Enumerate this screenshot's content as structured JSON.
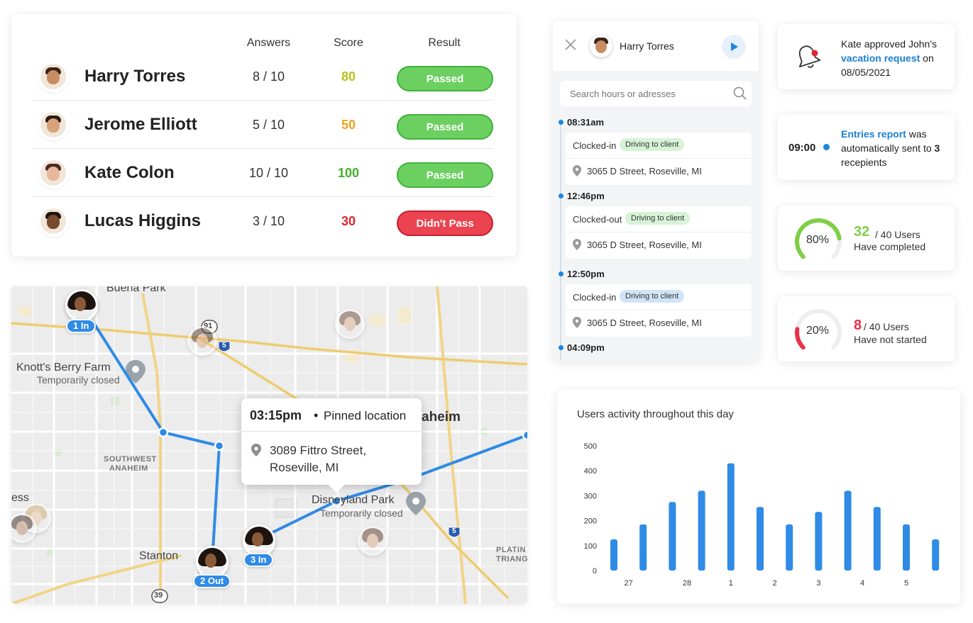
{
  "results": {
    "headers": {
      "answers": "Answers",
      "score": "Score",
      "result": "Result"
    },
    "rows": [
      {
        "name": "Harry Torres",
        "answers": "8 / 10",
        "score": "80",
        "score_color": "#b8c21c",
        "result": "Passed",
        "status": "pass",
        "skin": "#c98d63",
        "hair": "#3a2417"
      },
      {
        "name": "Jerome Elliott",
        "answers": "5 / 10",
        "score": "50",
        "score_color": "#f0a11a",
        "result": "Passed",
        "status": "pass",
        "skin": "#d8a27a",
        "hair": "#2a1b12"
      },
      {
        "name": "Kate Colon",
        "answers": "10 / 10",
        "score": "100",
        "score_color": "#43b02a",
        "result": "Passed",
        "status": "pass",
        "skin": "#e9b79c",
        "hair": "#4a2a20"
      },
      {
        "name": "Lucas Higgins",
        "answers": "3 / 10",
        "score": "30",
        "score_color": "#d9242b",
        "result": "Didn't Pass",
        "status": "fail",
        "skin": "#7a4a2c",
        "hair": "#1b1410"
      }
    ]
  },
  "map": {
    "labels": {
      "buena_park": "Buena Park",
      "knotts": "Knott's Berry Farm",
      "knotts_closed": "Temporarily closed",
      "anaheim": "aheim",
      "sw_anaheim_1": "SOUTHWEST",
      "sw_anaheim_2": "ANAHEIM",
      "disneyland": "Disneyland Park",
      "disney_closed": "Temporarily closed",
      "stanton": "Stanton",
      "ess": "ess",
      "platin_1": "PLATIN",
      "platin_2": "TRIANG",
      "route_91": "91",
      "route_5a": "5",
      "route_5b": "5",
      "route_39": "39"
    },
    "markers": [
      {
        "tag": "1 In"
      },
      {
        "tag": "2 Out"
      },
      {
        "tag": "3 In"
      }
    ],
    "popup": {
      "time": "03:15pm",
      "separator": "•",
      "label": "Pinned location",
      "address": "3089  Fittro Street, Roseville, MI"
    }
  },
  "timeline": {
    "user": "Harry Torres",
    "search_placeholder": "Search hours or adresses",
    "entries": [
      {
        "time": "08:31am",
        "state": "Clocked-in",
        "tag": "Driving to client",
        "tag_color": "green",
        "address": "3065  D Street, Roseville, MI"
      },
      {
        "time": "12:46pm",
        "state": "Clocked-out",
        "tag": "Driving to client",
        "tag_color": "green",
        "address": "3065  D Street, Roseville, MI"
      },
      {
        "time": "12:50pm",
        "state": "Clocked-in",
        "tag": "Driving to client",
        "tag_color": "blue",
        "address": "3065  D Street, Roseville, MI"
      }
    ],
    "last_time": "04:09pm"
  },
  "notification": {
    "text_before": "Kate approved John's ",
    "highlight": "vacation request",
    "text_after": " on 08/05/2021"
  },
  "report": {
    "time": "09:00",
    "highlight": "Entries report",
    "text_1": " was automatically sent to ",
    "count": "3",
    "text_2": " recepients"
  },
  "progress": [
    {
      "percent_label": "80%",
      "value": 0.8,
      "count": "32",
      "of": "/ 40 Users",
      "label": "Have completed",
      "color": "#7fcf45"
    },
    {
      "percent_label": "20%",
      "value": 0.2,
      "count": "8",
      "of": "/ 40 Users",
      "label": "Have not started",
      "color": "#e8314a"
    }
  ],
  "chart_data": {
    "type": "bar",
    "title": "Users activity throughout this day",
    "ylim": [
      0,
      500
    ],
    "yticks": [
      0,
      100,
      200,
      300,
      400,
      500
    ],
    "values": [
      125,
      185,
      275,
      320,
      430,
      255,
      185,
      235,
      320,
      255,
      185,
      125
    ],
    "xtick_labels": [
      {
        "label": "27",
        "index": 0.5
      },
      {
        "label": "28",
        "index": 2.5
      },
      {
        "label": "1",
        "index": 4
      },
      {
        "label": "2",
        "index": 5.5
      },
      {
        "label": "3",
        "index": 7
      },
      {
        "label": "4",
        "index": 8.5
      },
      {
        "label": "5",
        "index": 10
      }
    ],
    "bar_color": "#2f8be6",
    "grid": false
  }
}
